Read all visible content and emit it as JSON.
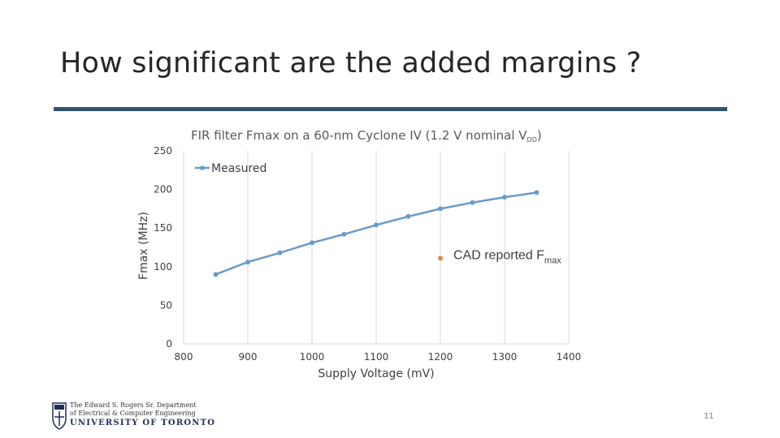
{
  "slide": {
    "title": "How significant are the added margins ?",
    "page_number": "11"
  },
  "logo": {
    "line1": "The Edward S. Rogers Sr. Department",
    "line2": "of Electrical & Computer Engineering",
    "line3": "UNIVERSITY OF TORONTO",
    "icon": "university-crest-icon"
  },
  "colors": {
    "title_rule": "#2e5373",
    "series": "#6a9bc9",
    "annotation_marker": "#e0884d"
  },
  "chart_data": {
    "type": "line",
    "title": "FIR filter Fmax on a 60-nm Cyclone IV (1.2 V nominal V",
    "title_subscript": "DD",
    "title_suffix": ")",
    "xlabel": "Supply Voltage (mV)",
    "ylabel": "Fmax (MHz)",
    "xlim": [
      800,
      1400
    ],
    "ylim": [
      0,
      250
    ],
    "xticks": [
      800,
      900,
      1000,
      1100,
      1200,
      1300,
      1400
    ],
    "yticks": [
      0,
      50,
      100,
      150,
      200,
      250
    ],
    "grid": "vertical",
    "legend_position": "top-left",
    "series": [
      {
        "name": "Measured",
        "x": [
          850,
          900,
          950,
          1000,
          1050,
          1100,
          1150,
          1200,
          1250,
          1300,
          1350
        ],
        "y": [
          90,
          106,
          118,
          131,
          142,
          154,
          165,
          175,
          183,
          190,
          196
        ]
      }
    ],
    "annotations": [
      {
        "x": 1200,
        "y": 111,
        "text": "CAD reported F",
        "subscript": "max"
      }
    ]
  }
}
